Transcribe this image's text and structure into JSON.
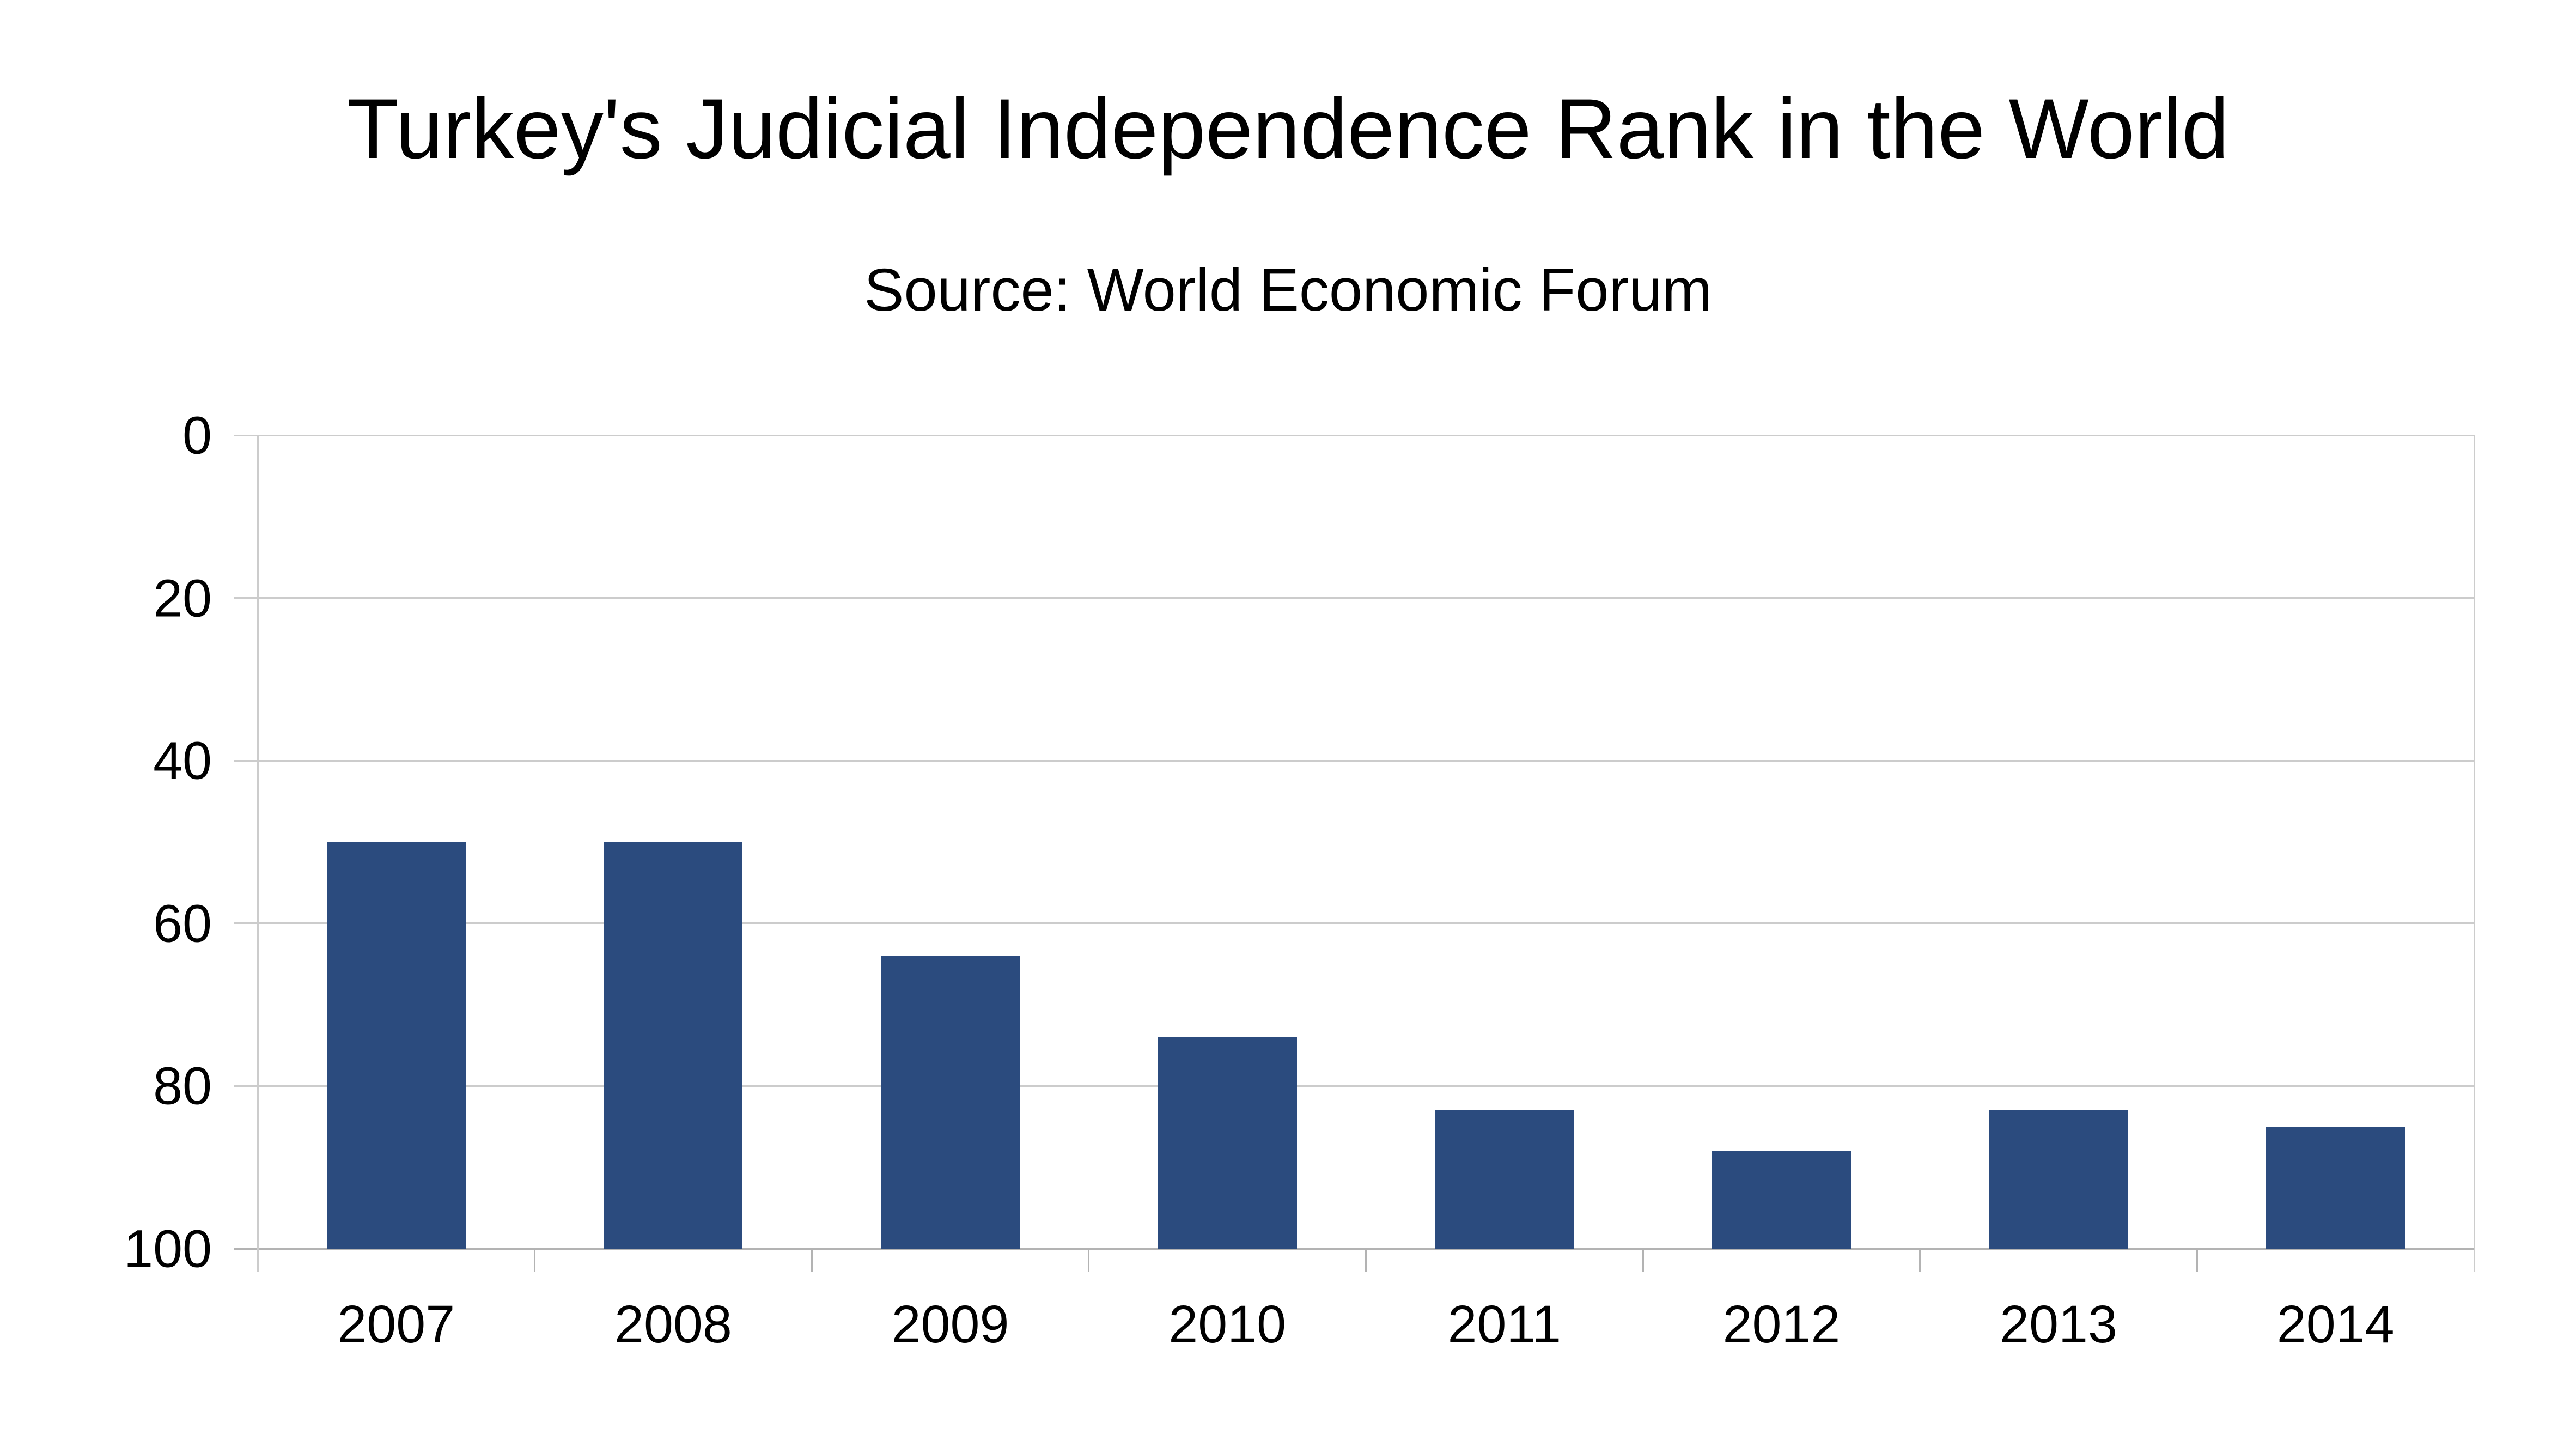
{
  "chart_data": {
    "type": "bar",
    "title": "Turkey's Judicial Independence Rank in the World",
    "subtitle": "Source: World Economic Forum",
    "categories": [
      "2007",
      "2008",
      "2009",
      "2010",
      "2011",
      "2012",
      "2013",
      "2014"
    ],
    "values": [
      50,
      50,
      64,
      74,
      83,
      88,
      83,
      85
    ],
    "xlabel": "",
    "ylabel": "",
    "ylim": [
      0,
      100
    ],
    "yticks": [
      0,
      20,
      40,
      60,
      80,
      100
    ],
    "y_axis_inverted": true,
    "grid": "horizontal",
    "legend": "none",
    "colors": {
      "bar": "#2B4B7E",
      "gridline": "#CCCCCC",
      "axis": "#B3B3B3",
      "text": "#000000",
      "background": "#FFFFFF"
    }
  }
}
